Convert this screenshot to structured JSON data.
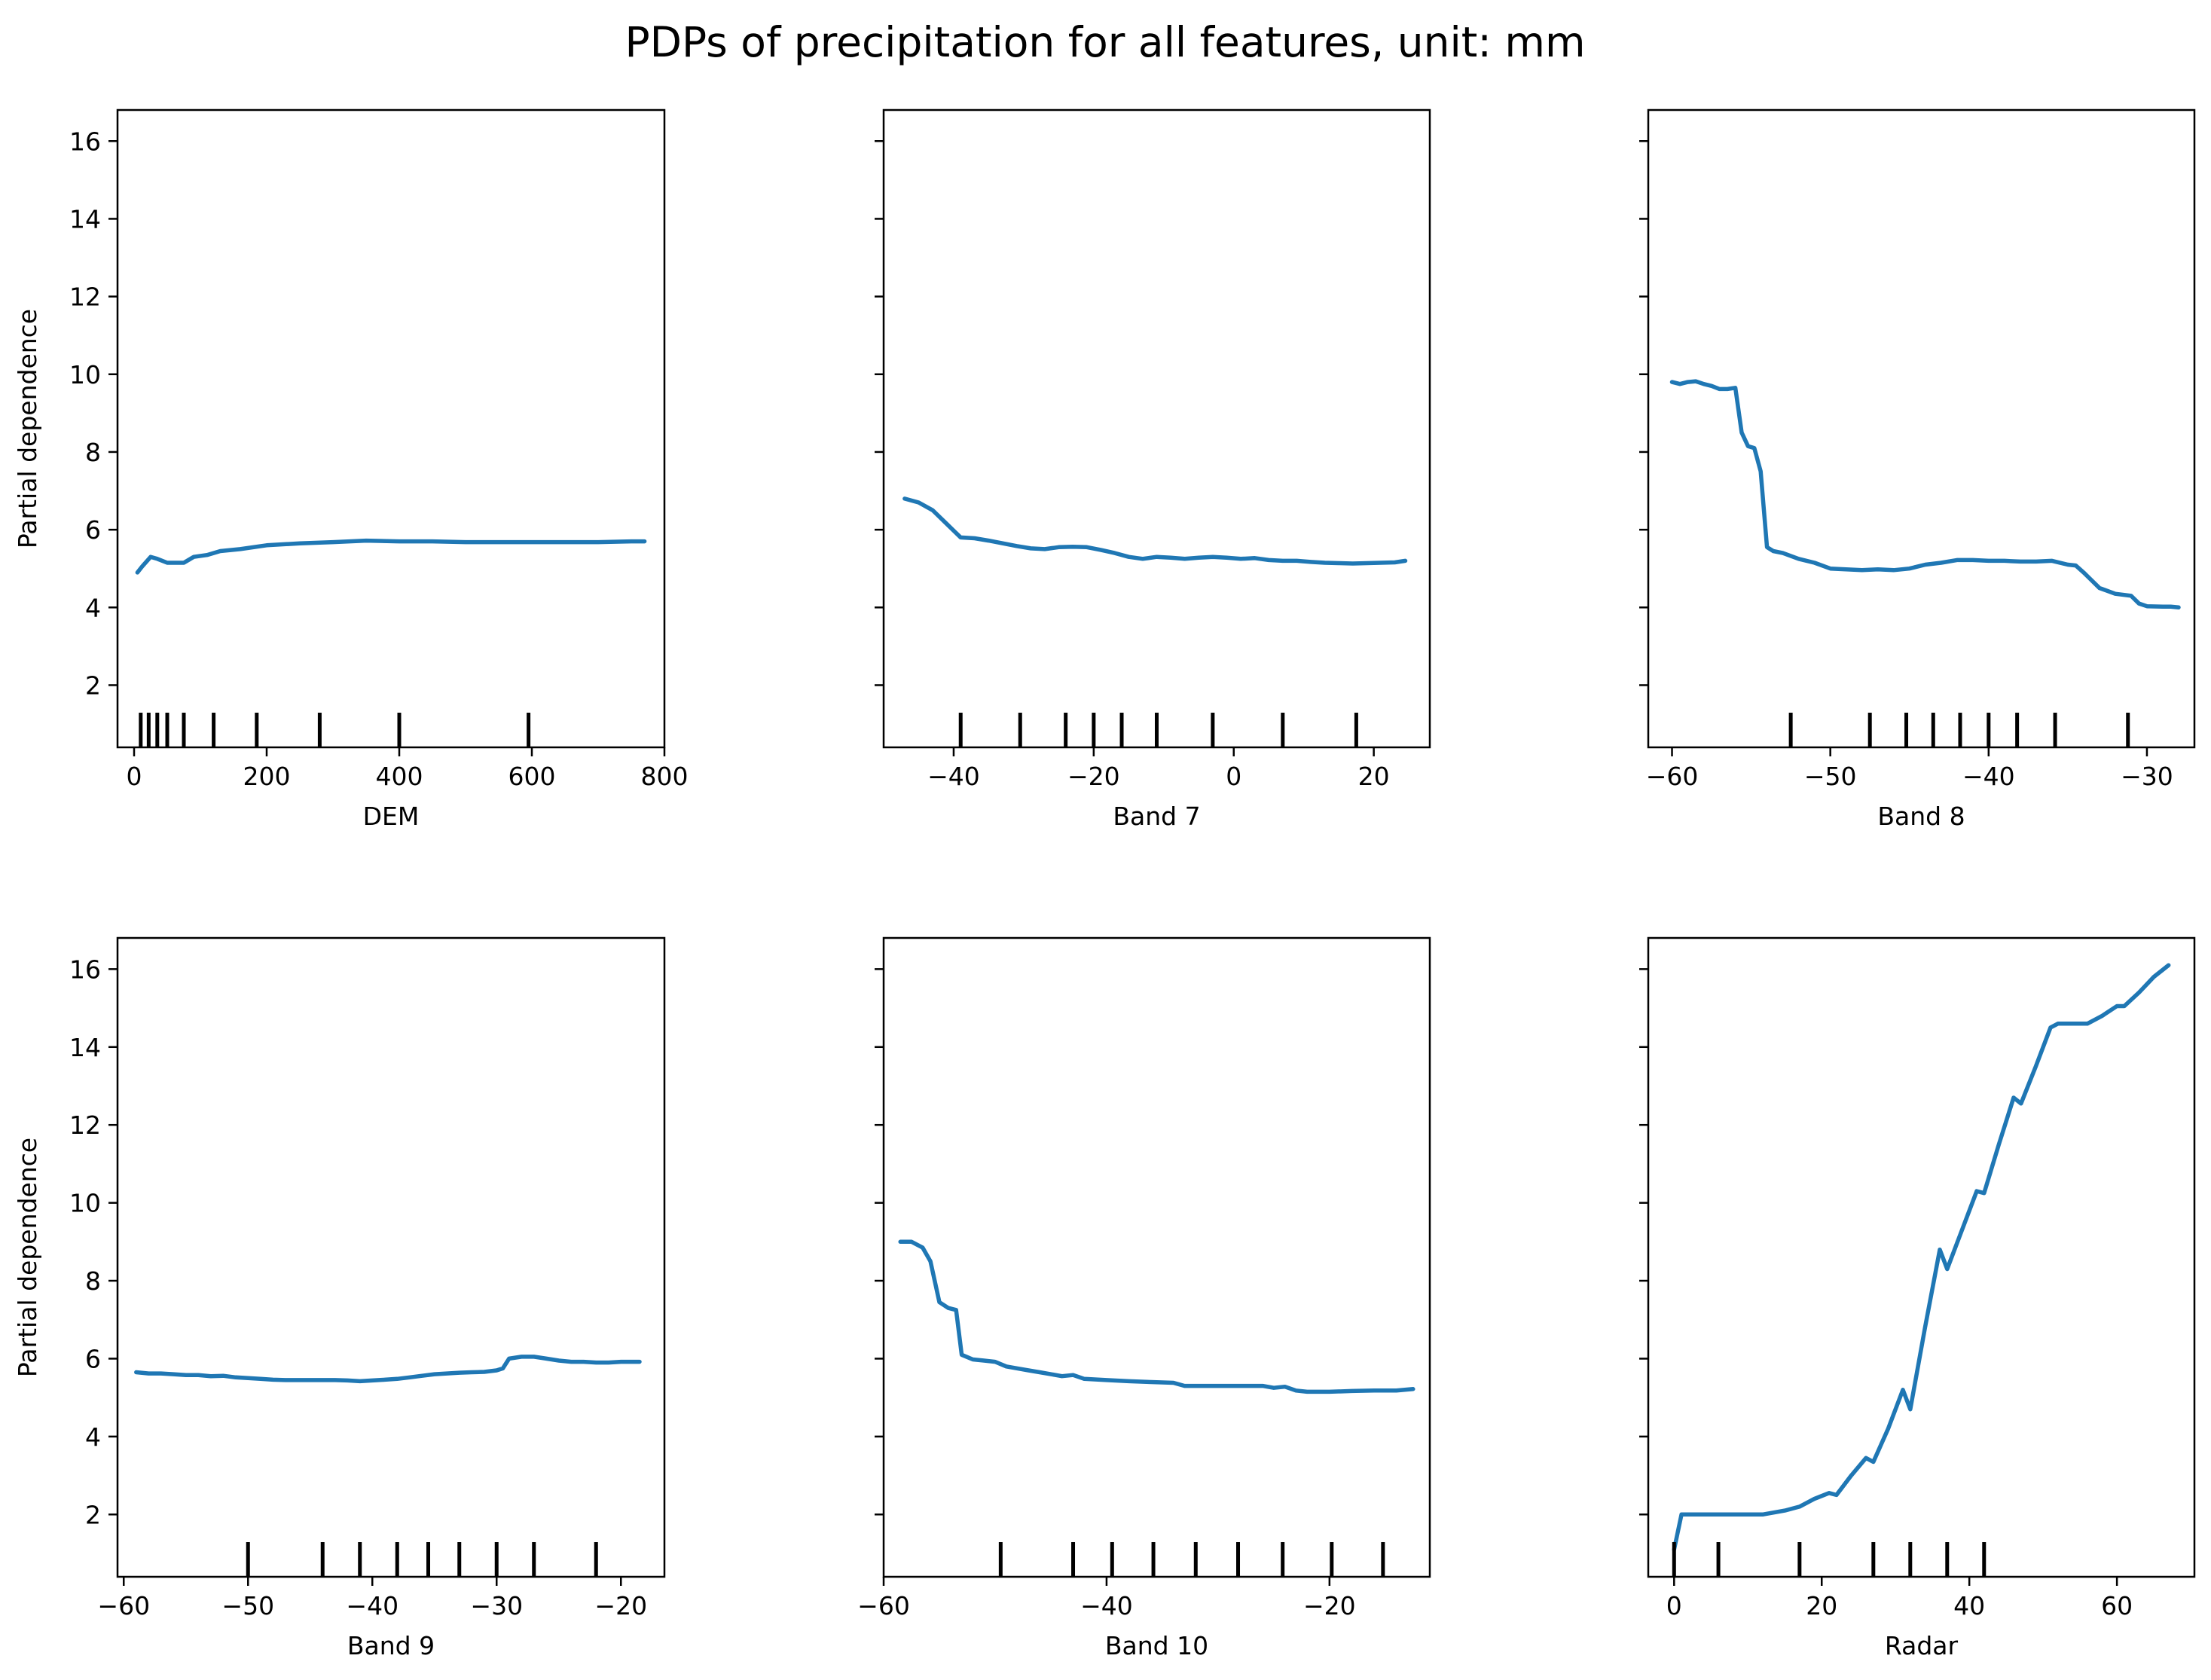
{
  "title": "PDPs of precipitation for all features, unit: mm",
  "colors": {
    "line": "#1f77b4",
    "axes": "#000000",
    "background": "#ffffff"
  },
  "chart_data": [
    {
      "type": "line",
      "xlabel": "DEM",
      "ylabel": "Partial dependence",
      "xlim": [
        -25,
        800
      ],
      "ylim": [
        0.4,
        16.8
      ],
      "xticks": [
        0,
        200,
        400,
        600,
        800
      ],
      "xtick_labels": [
        "0",
        "200",
        "400",
        "600",
        "800"
      ],
      "yticks": [
        2,
        4,
        6,
        8,
        10,
        12,
        14,
        16
      ],
      "ytick_labels": [
        "2",
        "4",
        "6",
        "8",
        "10",
        "12",
        "14",
        "16"
      ],
      "x": [
        5,
        12,
        25,
        35,
        50,
        60,
        75,
        90,
        110,
        130,
        160,
        200,
        250,
        300,
        350,
        400,
        450,
        500,
        550,
        600,
        650,
        700,
        750,
        770
      ],
      "y": [
        4.9,
        5.05,
        5.3,
        5.25,
        5.15,
        5.15,
        5.15,
        5.3,
        5.35,
        5.45,
        5.5,
        5.6,
        5.65,
        5.68,
        5.72,
        5.7,
        5.7,
        5.68,
        5.68,
        5.68,
        5.68,
        5.68,
        5.7,
        5.7
      ],
      "rug": [
        10,
        22,
        35,
        50,
        75,
        120,
        185,
        280,
        400,
        595
      ]
    },
    {
      "type": "line",
      "xlabel": "Band 7",
      "ylabel": "",
      "xlim": [
        -50,
        28
      ],
      "ylim": [
        0.4,
        16.8
      ],
      "xticks": [
        -40,
        -20,
        0,
        20
      ],
      "xtick_labels": [
        "−40",
        "−20",
        "0",
        "20"
      ],
      "yticks": [
        2,
        4,
        6,
        8,
        10,
        12,
        14,
        16
      ],
      "ytick_labels": [],
      "x": [
        -47,
        -45,
        -43,
        -41,
        -39,
        -37,
        -35,
        -33,
        -31,
        -29,
        -27,
        -25,
        -23,
        -21,
        -19,
        -17,
        -15,
        -13,
        -11,
        -9,
        -7,
        -5,
        -3,
        -1,
        1,
        3,
        5,
        7,
        9,
        11,
        13,
        15,
        17,
        19,
        21,
        23,
        24.5
      ],
      "y": [
        6.8,
        6.7,
        6.5,
        6.15,
        5.8,
        5.78,
        5.72,
        5.65,
        5.58,
        5.52,
        5.5,
        5.55,
        5.56,
        5.55,
        5.48,
        5.4,
        5.3,
        5.25,
        5.3,
        5.28,
        5.25,
        5.28,
        5.3,
        5.28,
        5.25,
        5.27,
        5.22,
        5.2,
        5.2,
        5.17,
        5.15,
        5.14,
        5.13,
        5.14,
        5.15,
        5.16,
        5.2
      ],
      "rug": [
        -39,
        -30.5,
        -24,
        -20,
        -16,
        -11,
        -3,
        7,
        17.5
      ]
    },
    {
      "type": "line",
      "xlabel": "Band 8",
      "ylabel": "",
      "xlim": [
        -61.5,
        -27
      ],
      "ylim": [
        0.4,
        16.8
      ],
      "xticks": [
        -60,
        -50,
        -40,
        -30
      ],
      "xtick_labels": [
        "−60",
        "−50",
        "−40",
        "−30"
      ],
      "yticks": [
        2,
        4,
        6,
        8,
        10,
        12,
        14,
        16
      ],
      "ytick_labels": [],
      "x": [
        -60,
        -59.5,
        -59,
        -58.5,
        -58,
        -57.5,
        -57,
        -56.5,
        -56,
        -55.6,
        -55.2,
        -54.8,
        -54.4,
        -54,
        -53.6,
        -53,
        -52,
        -51,
        -50,
        -49,
        -48,
        -47,
        -46,
        -45,
        -44,
        -43,
        -42,
        -41,
        -40,
        -39,
        -38,
        -37,
        -36,
        -35,
        -34.5,
        -34,
        -33.5,
        -33,
        -32,
        -31,
        -30.5,
        -30,
        -29,
        -28.5,
        -28
      ],
      "y": [
        9.8,
        9.75,
        9.8,
        9.82,
        9.75,
        9.7,
        9.62,
        9.62,
        9.65,
        8.5,
        8.15,
        8.1,
        7.5,
        5.55,
        5.45,
        5.4,
        5.25,
        5.15,
        5.0,
        4.98,
        4.96,
        4.98,
        4.96,
        5.0,
        5.1,
        5.15,
        5.22,
        5.22,
        5.2,
        5.2,
        5.18,
        5.18,
        5.2,
        5.1,
        5.08,
        4.9,
        4.7,
        4.5,
        4.35,
        4.3,
        4.1,
        4.03,
        4.02,
        4.02,
        4.0
      ],
      "rug": [
        -52.5,
        -47.5,
        -45.2,
        -43.5,
        -41.8,
        -40,
        -38.2,
        -35.8,
        -31.2
      ]
    },
    {
      "type": "line",
      "xlabel": "Band 9",
      "ylabel": "Partial dependence",
      "xlim": [
        -60.5,
        -16.5
      ],
      "ylim": [
        0.4,
        16.8
      ],
      "xticks": [
        -60,
        -50,
        -40,
        -30,
        -20
      ],
      "xtick_labels": [
        "−60",
        "−50",
        "−40",
        "−30",
        "−20"
      ],
      "yticks": [
        2,
        4,
        6,
        8,
        10,
        12,
        14,
        16
      ],
      "ytick_labels": [
        "2",
        "4",
        "6",
        "8",
        "10",
        "12",
        "14",
        "16"
      ],
      "x": [
        -59,
        -58,
        -57,
        -56,
        -55,
        -54,
        -53,
        -52,
        -51,
        -50,
        -49,
        -48,
        -47,
        -46,
        -45,
        -44,
        -43,
        -42,
        -41,
        -40,
        -39,
        -38,
        -37,
        -36,
        -35,
        -34,
        -33,
        -32,
        -31,
        -30,
        -29.5,
        -29,
        -28,
        -27,
        -26,
        -25,
        -24,
        -23,
        -22,
        -21,
        -20,
        -19,
        -18.5
      ],
      "y": [
        5.65,
        5.62,
        5.62,
        5.6,
        5.58,
        5.58,
        5.55,
        5.56,
        5.52,
        5.5,
        5.48,
        5.46,
        5.45,
        5.45,
        5.45,
        5.45,
        5.45,
        5.44,
        5.42,
        5.44,
        5.46,
        5.48,
        5.52,
        5.56,
        5.6,
        5.62,
        5.64,
        5.65,
        5.66,
        5.7,
        5.75,
        6.0,
        6.05,
        6.05,
        6.0,
        5.95,
        5.92,
        5.92,
        5.9,
        5.9,
        5.92,
        5.92,
        5.92
      ],
      "rug": [
        -50,
        -44,
        -41,
        -38,
        -35.5,
        -33,
        -30,
        -27,
        -22
      ]
    },
    {
      "type": "line",
      "xlabel": "Band 10",
      "ylabel": "",
      "xlim": [
        -60,
        -11
      ],
      "ylim": [
        0.4,
        16.8
      ],
      "xticks": [
        -60,
        -40,
        -20
      ],
      "xtick_labels": [
        "−60",
        "−40",
        "−20"
      ],
      "yticks": [
        2,
        4,
        6,
        8,
        10,
        12,
        14,
        16
      ],
      "ytick_labels": [],
      "x": [
        -58.5,
        -57.5,
        -56.5,
        -55.8,
        -55,
        -54.2,
        -53.5,
        -53,
        -52,
        -51,
        -50,
        -49,
        -48,
        -47,
        -46,
        -45,
        -44,
        -43,
        -42,
        -40,
        -38,
        -36,
        -34,
        -33,
        -32,
        -30,
        -28,
        -26,
        -25,
        -24,
        -23,
        -22,
        -20,
        -18,
        -16,
        -14,
        -12.5
      ],
      "y": [
        9.0,
        9.0,
        8.85,
        8.5,
        7.45,
        7.3,
        7.25,
        6.1,
        5.98,
        5.95,
        5.92,
        5.8,
        5.75,
        5.7,
        5.65,
        5.6,
        5.55,
        5.58,
        5.48,
        5.45,
        5.42,
        5.4,
        5.38,
        5.3,
        5.3,
        5.3,
        5.3,
        5.3,
        5.25,
        5.28,
        5.18,
        5.15,
        5.15,
        5.17,
        5.18,
        5.18,
        5.22
      ],
      "rug": [
        -49.5,
        -43,
        -39.5,
        -35.8,
        -32,
        -28.2,
        -24.2,
        -19.8,
        -15.2
      ]
    },
    {
      "type": "line",
      "xlabel": "Radar",
      "ylabel": "",
      "xlim": [
        -3.5,
        70.5
      ],
      "ylim": [
        0.4,
        16.8
      ],
      "xticks": [
        0,
        20,
        40,
        60
      ],
      "xtick_labels": [
        "0",
        "20",
        "40",
        "60"
      ],
      "yticks": [
        2,
        4,
        6,
        8,
        10,
        12,
        14,
        16
      ],
      "ytick_labels": [],
      "x": [
        0,
        1,
        3,
        6,
        9,
        12,
        15,
        17,
        19,
        21,
        22,
        24,
        26,
        27,
        29,
        31,
        32,
        34,
        36,
        37,
        39,
        41,
        42,
        44,
        46,
        47,
        49,
        51,
        52,
        54,
        56,
        58,
        60,
        61,
        63,
        65,
        67
      ],
      "y": [
        1.1,
        2.0,
        2.0,
        2.0,
        2.0,
        2.0,
        2.1,
        2.2,
        2.4,
        2.55,
        2.5,
        3.0,
        3.45,
        3.35,
        4.2,
        5.2,
        4.7,
        6.8,
        8.8,
        8.3,
        9.3,
        10.3,
        10.25,
        11.5,
        12.7,
        12.55,
        13.5,
        14.5,
        14.6,
        14.6,
        14.6,
        14.8,
        15.05,
        15.05,
        15.4,
        15.8,
        16.1
      ],
      "rug": [
        0,
        6,
        17,
        27,
        32,
        37,
        42
      ]
    }
  ]
}
